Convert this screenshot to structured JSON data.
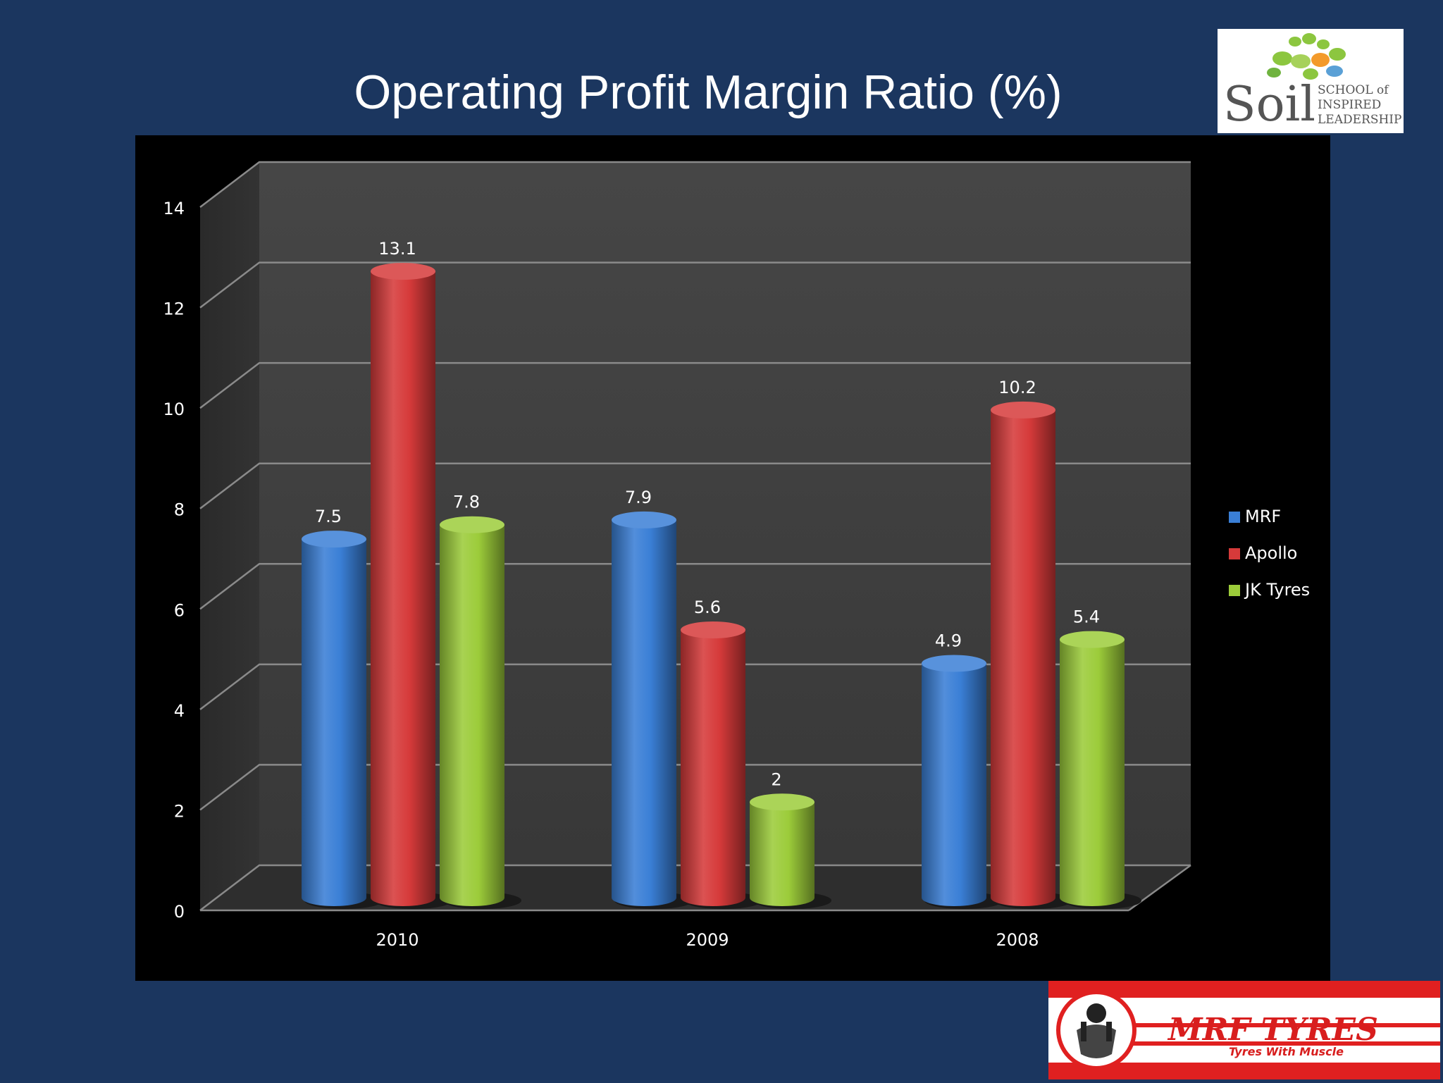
{
  "slide": {
    "title": "Operating Profit Margin Ratio (%)"
  },
  "chart_data": {
    "type": "bar",
    "title": "Operating Profit Margin Ratio (%)",
    "categories": [
      "2010",
      "2009",
      "2008"
    ],
    "series": [
      {
        "name": "MRF",
        "values": [
          7.5,
          7.9,
          4.9
        ],
        "color": "#3a7fd6"
      },
      {
        "name": "Apollo",
        "values": [
          13.1,
          5.6,
          10.2
        ],
        "color": "#d63a3a"
      },
      {
        "name": "JK Tyres",
        "values": [
          7.8,
          2,
          5.4
        ],
        "color": "#9ccc3a"
      }
    ],
    "y_ticks": [
      "0",
      "2",
      "4",
      "6",
      "8",
      "10",
      "12",
      "14"
    ],
    "ylim": [
      0,
      14
    ],
    "grid": true,
    "legend": "right",
    "style": "3d-cylinder"
  },
  "logos": {
    "soil": {
      "word": "Soil",
      "line1": "SCHOOL of",
      "line2": "INSPIRED",
      "line3": "LEADERSHIP"
    },
    "mrf": {
      "brand": "MRF TYRES",
      "tagline": "Tyres With Muscle"
    }
  }
}
